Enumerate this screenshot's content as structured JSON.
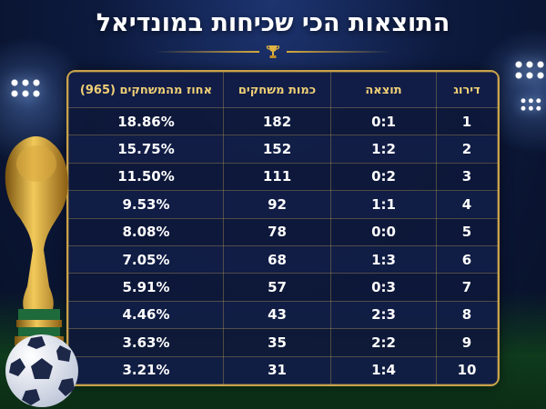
{
  "title": "התוצאות הכי שכיחות במונדיאל",
  "table": {
    "headers": {
      "rank": "דירוג",
      "score": "תוצאה",
      "games": "כמות משחקים",
      "percent": "אחוז מהמשחקים (965)"
    },
    "rows": [
      {
        "rank": "1",
        "score": "0:1",
        "games": "182",
        "percent": "18.86%"
      },
      {
        "rank": "2",
        "score": "1:2",
        "games": "152",
        "percent": "15.75%"
      },
      {
        "rank": "3",
        "score": "0:2",
        "games": "111",
        "percent": "11.50%"
      },
      {
        "rank": "4",
        "score": "1:1",
        "games": "92",
        "percent": "9.53%"
      },
      {
        "rank": "5",
        "score": "0:0",
        "games": "78",
        "percent": "8.08%"
      },
      {
        "rank": "6",
        "score": "1:3",
        "games": "68",
        "percent": "7.05%"
      },
      {
        "rank": "7",
        "score": "0:3",
        "games": "57",
        "percent": "5.91%"
      },
      {
        "rank": "8",
        "score": "2:3",
        "games": "43",
        "percent": "4.46%"
      },
      {
        "rank": "9",
        "score": "2:2",
        "games": "35",
        "percent": "3.63%"
      },
      {
        "rank": "10",
        "score": "1:4",
        "games": "31",
        "percent": "3.21%"
      }
    ]
  },
  "icons": {
    "title_ornament": "trophy-icon",
    "left_decoration": "world-cup-trophy-icon",
    "ball": "soccer-ball-icon"
  },
  "colors": {
    "accent_gold": "#c9a24a",
    "header_text": "#f0cf76",
    "background": "#0d1a3e"
  }
}
